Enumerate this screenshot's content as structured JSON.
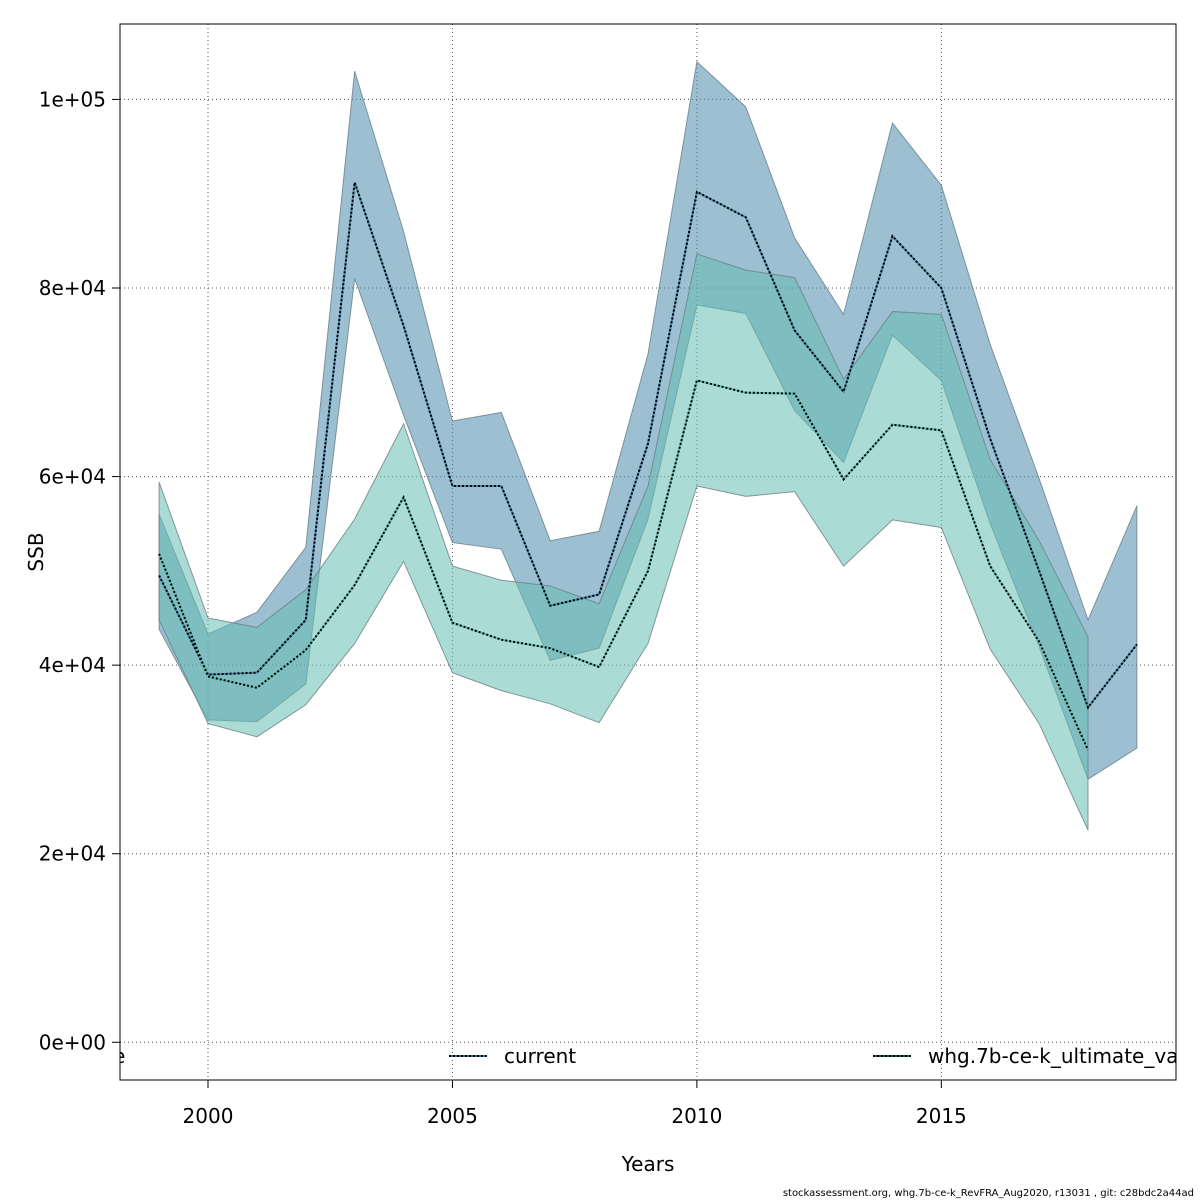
{
  "chart_data": {
    "type": "area",
    "xlabel": "Years",
    "ylabel": "SSB",
    "xlim": [
      1998.2,
      2019.8
    ],
    "ylim": [
      -4000,
      108000
    ],
    "x_ticks": [
      2000,
      2005,
      2010,
      2015
    ],
    "x_tick_labels": [
      "2000",
      "2005",
      "2010",
      "2015"
    ],
    "y_ticks": [
      0,
      20000,
      40000,
      60000,
      80000,
      100000
    ],
    "y_tick_labels": [
      "0e+00",
      "2e+04",
      "4e+04",
      "6e+04",
      "8e+04",
      "1e+05"
    ],
    "grid": true,
    "legend_placement": "bottom",
    "legend": [
      {
        "label": "e",
        "color": null
      },
      {
        "label": "current",
        "color": "#2E6E99"
      },
      {
        "label": "whg.7b-ce-k_ultimate_va",
        "color": "#00594C"
      }
    ],
    "series": [
      {
        "name": "current",
        "line_color": "#000000",
        "band_color": "#4A8BAD",
        "x": [
          1999,
          2000,
          2001,
          2002,
          2003,
          2004,
          2005,
          2006,
          2007,
          2008,
          2009,
          2010,
          2011,
          2012,
          2013,
          2014,
          2015,
          2016,
          2017,
          2018,
          2019
        ],
        "values": [
          49500,
          39000,
          39200,
          44800,
          91200,
          76000,
          59000,
          59000,
          46300,
          47500,
          63500,
          90200,
          87500,
          75500,
          69000,
          85500,
          80000,
          64000,
          50000,
          35500,
          42200
        ],
        "lower": [
          43800,
          34200,
          34000,
          38000,
          81000,
          66500,
          53000,
          52300,
          40500,
          41800,
          55500,
          78200,
          77300,
          67000,
          61500,
          75000,
          70200,
          55000,
          42000,
          27900,
          31200
        ],
        "upper": [
          56000,
          43300,
          45600,
          52500,
          103000,
          86000,
          65900,
          66800,
          53200,
          54200,
          73000,
          104000,
          99200,
          85300,
          77200,
          97500,
          90900,
          74000,
          59800,
          44800,
          56900
        ]
      },
      {
        "name": "whg.7b-ce-k_ultimate_va",
        "line_color": "#000000",
        "band_color": "#66BEB2",
        "x": [
          1999,
          2000,
          2001,
          2002,
          2003,
          2004,
          2005,
          2006,
          2007,
          2008,
          2009,
          2010,
          2011,
          2012,
          2013,
          2014,
          2015,
          2016,
          2017,
          2018
        ],
        "values": [
          51800,
          38800,
          37600,
          41600,
          48500,
          57800,
          44500,
          42700,
          41800,
          39800,
          50000,
          70200,
          68900,
          68800,
          59700,
          65500,
          64900,
          50500,
          42500,
          31000
        ],
        "lower": [
          44800,
          33800,
          32400,
          35800,
          42300,
          51000,
          39200,
          37300,
          35900,
          33900,
          42300,
          59000,
          57900,
          58400,
          50500,
          55400,
          54600,
          41700,
          33800,
          22500
        ],
        "upper": [
          59400,
          45000,
          44000,
          48000,
          55500,
          65600,
          50500,
          49000,
          48400,
          46500,
          59000,
          83600,
          81900,
          81100,
          70300,
          77500,
          77200,
          61800,
          53200,
          43000
        ]
      }
    ]
  },
  "footer": "stockassessment.org, whg.7b-ce-k_RevFRA_Aug2020, r13031 , git: c28bdc2a44ad"
}
